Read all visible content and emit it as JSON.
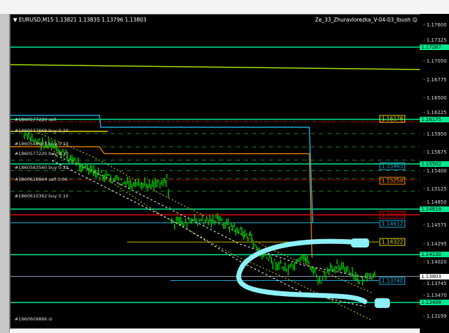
{
  "header": {
    "symbol": "EURUSD,M15",
    "ohlc": "1.13821 1.13835 1.13796 1.13803",
    "expert": "Ze_33_Zhuravlorezka_V-04-03_Ibush",
    "expert_icon": "smiley-icon"
  },
  "axis": {
    "ticks": [
      "1.17600",
      "1.17325",
      "1.17050",
      "1.16775",
      "1.16500",
      "1.16225",
      "1.15950",
      "1.15675",
      "1.15400",
      "1.15125",
      "1.14850",
      "1.14575",
      "1.14295",
      "1.14020",
      "1.13745",
      "1.13470",
      "1.13199"
    ],
    "level_tags": [
      {
        "price": "1.17267",
        "color": "#00e890"
      },
      {
        "price": "1.16175",
        "color": "#00e890"
      },
      {
        "price": "1.15502",
        "color": "#00e890"
      },
      {
        "price": "1.14819",
        "color": "#00e890"
      },
      {
        "price": "1.14130",
        "color": "#00e890"
      },
      {
        "price": "1.13408",
        "color": "#00e890"
      },
      {
        "price": "1.13803",
        "color": "#ffffff"
      }
    ]
  },
  "price_boxes": [
    {
      "price": "1.16178",
      "color": "#e8d800"
    },
    {
      "price": "1.15463",
      "color": "#20a8d8"
    },
    {
      "price": "1.15250",
      "color": "#ff8c00"
    },
    {
      "price": "1.14733",
      "color": "#e00000"
    },
    {
      "price": "1.14612",
      "color": "#20a8d8"
    },
    {
      "price": "1.14322",
      "color": "#e8d800"
    },
    {
      "price": "1.13740",
      "color": "#20a8d8"
    }
  ],
  "orders": [
    {
      "label": "#1860577220 sell",
      "price": 1.1617
    },
    {
      "label": "#1860547669 buy 0.10",
      "price": 1.16
    },
    {
      "label": "#1860548183 buy 0.10",
      "price": 1.158
    },
    {
      "label": "#1860577220 buy 0.10",
      "price": 1.1566
    },
    {
      "label": "#1860583560 buy 0.10",
      "price": 1.1545
    },
    {
      "label": "#1860616864 sell 0.06",
      "price": 1.1527
    },
    {
      "label": "#1860610362 buy 0.10",
      "price": 1.1502
    },
    {
      "label": "#1860609866 sl",
      "price": 1.1316
    }
  ]
}
